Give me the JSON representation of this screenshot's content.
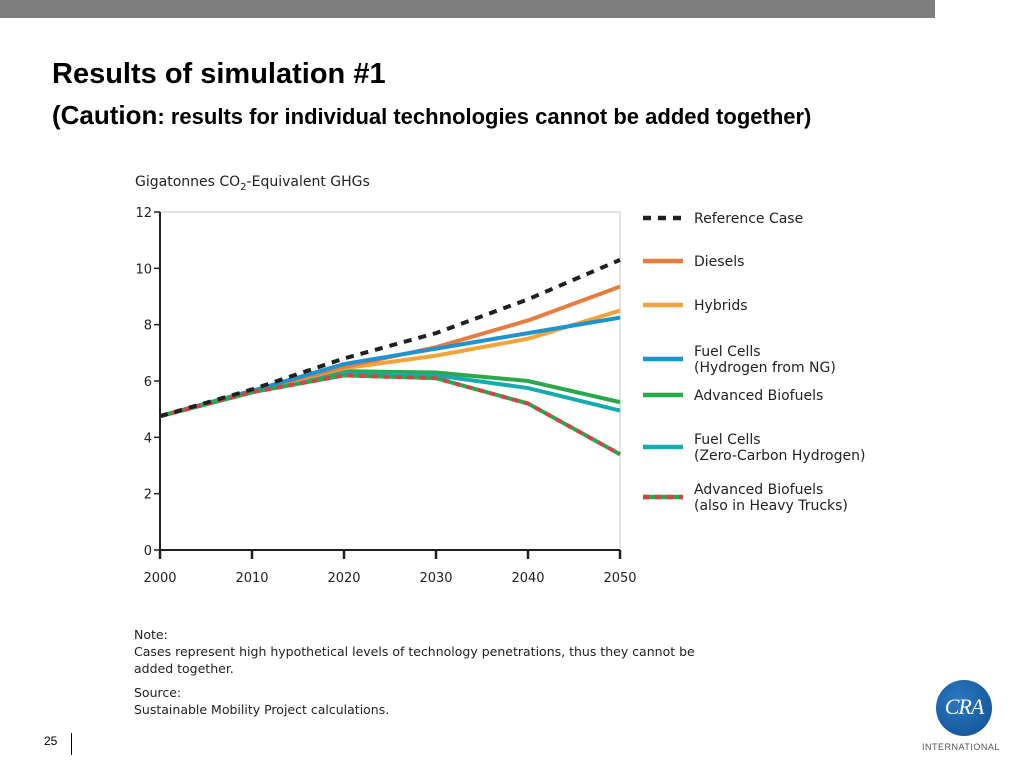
{
  "slide": {
    "title": "Results of simulation #1",
    "subtitle_part1": "(Caution",
    "subtitle_part2": ": results for individual technologies cannot be added together)",
    "page_number": "25"
  },
  "note": {
    "label": "Note:",
    "text": "Cases represent high hypothetical levels of technology penetrations, thus they cannot be added together.",
    "source_label": "Source:",
    "source_text": "Sustainable Mobility Project calculations."
  },
  "logo": {
    "mark": "CRA",
    "caption": "INTERNATIONAL"
  },
  "chart_data": {
    "type": "line",
    "title": "Gigatonnes CO2-Equivalent GHGs",
    "title_parts": [
      "Gigatonnes CO",
      "2",
      "-Equivalent GHGs"
    ],
    "x": [
      2000,
      2010,
      2020,
      2030,
      2040,
      2050
    ],
    "xlim": [
      2000,
      2050
    ],
    "ylim": [
      0,
      12
    ],
    "yticks": [
      0,
      2,
      4,
      6,
      8,
      10,
      12
    ],
    "grid": false,
    "legend_position": "right",
    "series": [
      {
        "name": "Reference Case",
        "color": "#231f20",
        "style": "dashed",
        "values": [
          4.75,
          5.7,
          6.8,
          7.7,
          8.9,
          10.3
        ]
      },
      {
        "name": "Diesels",
        "color": "#e87c3e",
        "style": "solid",
        "values": [
          4.75,
          5.65,
          6.5,
          7.2,
          8.15,
          9.35
        ]
      },
      {
        "name": "Hybrids",
        "color": "#f2a33a",
        "style": "solid",
        "values": [
          4.75,
          5.65,
          6.45,
          6.9,
          7.5,
          8.5
        ]
      },
      {
        "name": "Fuel Cells\n(Hydrogen from NG)",
        "color": "#1f93d1",
        "style": "solid",
        "values": [
          4.75,
          5.65,
          6.6,
          7.15,
          7.7,
          8.25
        ]
      },
      {
        "name": "Advanced Biofuels",
        "color": "#2aa84a",
        "style": "solid",
        "values": [
          4.75,
          5.6,
          6.35,
          6.3,
          6.0,
          5.25
        ]
      },
      {
        "name": "Fuel Cells\n(Zero-Carbon Hydrogen)",
        "color": "#16aab0",
        "style": "solid",
        "values": [
          4.75,
          5.6,
          6.25,
          6.2,
          5.75,
          4.95
        ]
      },
      {
        "name": "Advanced Biofuels\n(also in Heavy Trucks)",
        "color": "#2aa84a",
        "color2": "#d6414b",
        "style": "dashed-two-tone",
        "values": [
          4.75,
          5.6,
          6.2,
          6.1,
          5.2,
          3.4
        ]
      }
    ]
  }
}
